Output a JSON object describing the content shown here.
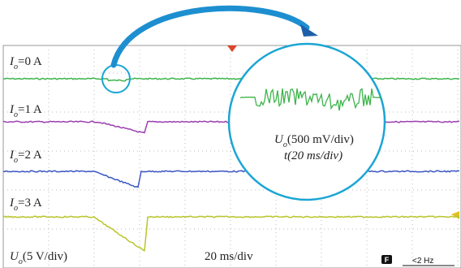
{
  "traces": [
    {
      "symbol": "I",
      "subscript": "o",
      "value": "=0 A"
    },
    {
      "symbol": "I",
      "subscript": "o",
      "value": "=1 A"
    },
    {
      "symbol": "I",
      "subscript": "o",
      "value": "=2 A"
    },
    {
      "symbol": "I",
      "subscript": "o",
      "value": "=3 A"
    }
  ],
  "scale": {
    "symbol": "U",
    "subscript": "o",
    "value": "(5 V/div)"
  },
  "time_scale": "20 ms/div",
  "inset": {
    "symbol": "U",
    "subscript": "o",
    "value": "(500 mV/div)",
    "time": "t(20 ms/div)"
  },
  "status": {
    "icon": "F",
    "frequency": "<2 Hz"
  }
}
